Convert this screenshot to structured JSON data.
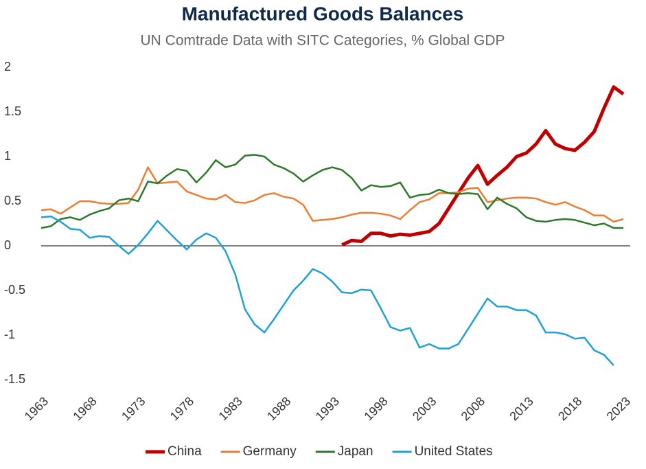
{
  "chart_data": {
    "type": "line",
    "title": "Manufactured Goods Balances",
    "subtitle": "UN Comtrade Data with SITC Categories, % Global GDP",
    "x": [
      1963,
      1964,
      1965,
      1966,
      1967,
      1968,
      1969,
      1970,
      1971,
      1972,
      1973,
      1974,
      1975,
      1976,
      1977,
      1978,
      1979,
      1980,
      1981,
      1982,
      1983,
      1984,
      1985,
      1986,
      1987,
      1988,
      1989,
      1990,
      1991,
      1992,
      1993,
      1994,
      1995,
      1996,
      1997,
      1998,
      1999,
      2000,
      2001,
      2002,
      2003,
      2004,
      2005,
      2006,
      2007,
      2008,
      2009,
      2010,
      2011,
      2012,
      2013,
      2014,
      2015,
      2016,
      2017,
      2018,
      2019,
      2020,
      2021,
      2022,
      2023
    ],
    "series": [
      {
        "name": "China",
        "color": "#c00000",
        "values": [
          null,
          null,
          null,
          null,
          null,
          null,
          null,
          null,
          null,
          null,
          null,
          null,
          null,
          null,
          null,
          null,
          null,
          null,
          null,
          null,
          null,
          null,
          null,
          null,
          null,
          null,
          null,
          null,
          null,
          null,
          null,
          0.01,
          0.06,
          0.05,
          0.14,
          0.14,
          0.11,
          0.13,
          0.12,
          0.14,
          0.16,
          0.25,
          0.42,
          0.59,
          0.76,
          0.9,
          0.69,
          0.79,
          0.88,
          1.0,
          1.04,
          1.14,
          1.29,
          1.14,
          1.09,
          1.07,
          1.16,
          1.28,
          1.54,
          1.78,
          1.7
        ]
      },
      {
        "name": "Germany",
        "color": "#ed7d31",
        "values": [
          0.4,
          0.41,
          0.36,
          0.43,
          0.5,
          0.5,
          0.48,
          0.47,
          0.47,
          0.48,
          0.63,
          0.88,
          0.7,
          0.71,
          0.72,
          0.61,
          0.57,
          0.53,
          0.52,
          0.57,
          0.49,
          0.48,
          0.51,
          0.57,
          0.59,
          0.55,
          0.53,
          0.46,
          0.28,
          0.29,
          0.3,
          0.32,
          0.35,
          0.37,
          0.37,
          0.36,
          0.34,
          0.3,
          0.4,
          0.49,
          0.52,
          0.59,
          0.59,
          0.6,
          0.64,
          0.65,
          0.49,
          0.51,
          0.53,
          0.54,
          0.54,
          0.53,
          0.49,
          0.46,
          0.49,
          0.44,
          0.4,
          0.34,
          0.34,
          0.27,
          0.3
        ]
      },
      {
        "name": "Japan",
        "color": "#2a7a2a",
        "values": [
          0.2,
          0.22,
          0.3,
          0.32,
          0.29,
          0.35,
          0.39,
          0.42,
          0.51,
          0.53,
          0.5,
          0.72,
          0.7,
          0.79,
          0.86,
          0.84,
          0.71,
          0.82,
          0.96,
          0.88,
          0.91,
          1.01,
          1.02,
          1.0,
          0.91,
          0.87,
          0.81,
          0.72,
          0.79,
          0.85,
          0.88,
          0.85,
          0.76,
          0.62,
          0.68,
          0.66,
          0.67,
          0.71,
          0.54,
          0.57,
          0.58,
          0.63,
          0.59,
          0.58,
          0.59,
          0.58,
          0.41,
          0.54,
          0.47,
          0.42,
          0.32,
          0.28,
          0.27,
          0.29,
          0.3,
          0.29,
          0.26,
          0.23,
          0.25,
          0.2,
          0.2
        ]
      },
      {
        "name": "United States",
        "color": "#1ea1d6",
        "values": [
          0.32,
          0.33,
          0.27,
          0.19,
          0.18,
          0.09,
          0.11,
          0.1,
          0.0,
          -0.09,
          0.01,
          0.14,
          0.28,
          0.17,
          0.06,
          -0.04,
          0.07,
          0.14,
          0.09,
          -0.06,
          -0.32,
          -0.71,
          -0.88,
          -0.97,
          -0.82,
          -0.66,
          -0.5,
          -0.39,
          -0.26,
          -0.31,
          -0.4,
          -0.52,
          -0.53,
          -0.49,
          -0.5,
          -0.7,
          -0.91,
          -0.95,
          -0.92,
          -1.14,
          -1.1,
          -1.15,
          -1.15,
          -1.1,
          -0.93,
          -0.76,
          -0.59,
          -0.68,
          -0.68,
          -0.72,
          -0.72,
          -0.78,
          -0.97,
          -0.97,
          -0.99,
          -1.04,
          -1.03,
          -1.17,
          -1.22,
          -1.34,
          null
        ]
      }
    ],
    "xlim": [
      1963,
      2023
    ],
    "xticks": [
      1963,
      1968,
      1973,
      1978,
      1983,
      1988,
      1993,
      1998,
      2003,
      2008,
      2013,
      2018,
      2023
    ],
    "ylim": [
      -1.5,
      2
    ],
    "yticks": [
      -1.5,
      -1,
      -0.5,
      0,
      0.5,
      1,
      1.5,
      2
    ],
    "zero_line": true,
    "legend": "bottom"
  }
}
